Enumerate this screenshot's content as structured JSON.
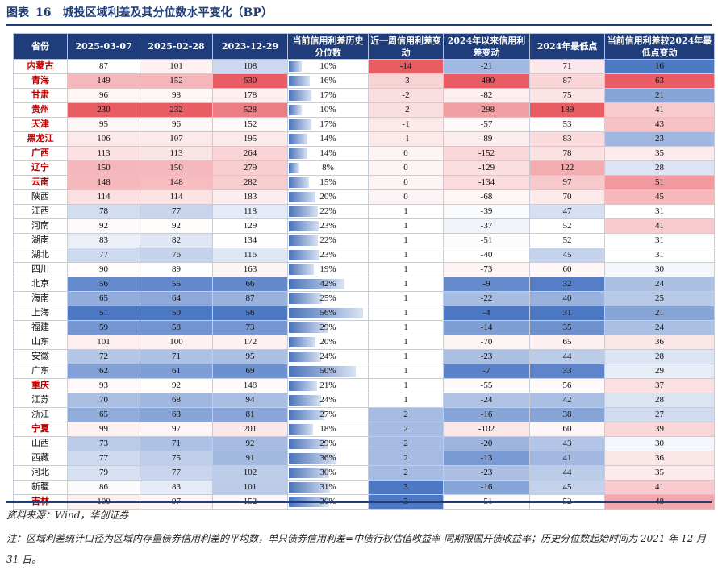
{
  "title": {
    "label": "图表",
    "number": "16",
    "text": "城投区域利差及其分位数水平变化（BP）"
  },
  "columns": [
    "省份",
    "2025-03-07",
    "2025-02-28",
    "2023-12-29",
    "当前信用利差历史分位数",
    "近一周信用利差变动",
    "2024年以来信用利差变动",
    "2024年最低点",
    "当前信用利差较2024年最低点变动"
  ],
  "rows": [
    {
      "p": "内蒙古",
      "red": true,
      "a": "87",
      "b": "101",
      "c": "108",
      "pct": "10%",
      "pv": 10,
      "wk": "-14",
      "ytd": "-21",
      "low": "71",
      "vs": "16"
    },
    {
      "p": "青海",
      "red": true,
      "a": "149",
      "b": "152",
      "c": "630",
      "pct": "16%",
      "pv": 16,
      "wk": "-3",
      "ytd": "-480",
      "low": "87",
      "vs": "63"
    },
    {
      "p": "甘肃",
      "red": true,
      "a": "96",
      "b": "98",
      "c": "178",
      "pct": "17%",
      "pv": 17,
      "wk": "-2",
      "ytd": "-82",
      "low": "75",
      "vs": "21"
    },
    {
      "p": "贵州",
      "red": true,
      "a": "230",
      "b": "232",
      "c": "528",
      "pct": "10%",
      "pv": 10,
      "wk": "-2",
      "ytd": "-298",
      "low": "189",
      "vs": "41"
    },
    {
      "p": "天津",
      "red": true,
      "a": "95",
      "b": "96",
      "c": "152",
      "pct": "17%",
      "pv": 17,
      "wk": "-1",
      "ytd": "-57",
      "low": "53",
      "vs": "43"
    },
    {
      "p": "黑龙江",
      "red": true,
      "a": "106",
      "b": "107",
      "c": "195",
      "pct": "14%",
      "pv": 14,
      "wk": "-1",
      "ytd": "-89",
      "low": "83",
      "vs": "23"
    },
    {
      "p": "广西",
      "red": true,
      "a": "113",
      "b": "113",
      "c": "264",
      "pct": "14%",
      "pv": 14,
      "wk": "0",
      "ytd": "-152",
      "low": "78",
      "vs": "35"
    },
    {
      "p": "辽宁",
      "red": true,
      "a": "150",
      "b": "150",
      "c": "279",
      "pct": "8%",
      "pv": 8,
      "wk": "0",
      "ytd": "-129",
      "low": "122",
      "vs": "28"
    },
    {
      "p": "云南",
      "red": true,
      "a": "148",
      "b": "148",
      "c": "282",
      "pct": "15%",
      "pv": 15,
      "wk": "0",
      "ytd": "-134",
      "low": "97",
      "vs": "51"
    },
    {
      "p": "陕西",
      "red": false,
      "a": "114",
      "b": "114",
      "c": "183",
      "pct": "20%",
      "pv": 20,
      "wk": "0",
      "ytd": "-68",
      "low": "70",
      "vs": "45"
    },
    {
      "p": "江西",
      "red": false,
      "a": "78",
      "b": "77",
      "c": "118",
      "pct": "22%",
      "pv": 22,
      "wk": "1",
      "ytd": "-39",
      "low": "47",
      "vs": "31"
    },
    {
      "p": "河南",
      "red": false,
      "a": "92",
      "b": "92",
      "c": "129",
      "pct": "23%",
      "pv": 23,
      "wk": "1",
      "ytd": "-37",
      "low": "52",
      "vs": "41"
    },
    {
      "p": "湖南",
      "red": false,
      "a": "83",
      "b": "82",
      "c": "134",
      "pct": "22%",
      "pv": 22,
      "wk": "1",
      "ytd": "-51",
      "low": "52",
      "vs": "31"
    },
    {
      "p": "湖北",
      "red": false,
      "a": "77",
      "b": "76",
      "c": "116",
      "pct": "23%",
      "pv": 23,
      "wk": "1",
      "ytd": "-40",
      "low": "45",
      "vs": "31"
    },
    {
      "p": "四川",
      "red": false,
      "a": "90",
      "b": "89",
      "c": "163",
      "pct": "19%",
      "pv": 19,
      "wk": "1",
      "ytd": "-73",
      "low": "60",
      "vs": "30"
    },
    {
      "p": "北京",
      "red": false,
      "a": "56",
      "b": "55",
      "c": "66",
      "pct": "42%",
      "pv": 42,
      "wk": "1",
      "ytd": "-9",
      "low": "32",
      "vs": "24"
    },
    {
      "p": "海南",
      "red": false,
      "a": "65",
      "b": "64",
      "c": "87",
      "pct": "25%",
      "pv": 25,
      "wk": "1",
      "ytd": "-22",
      "low": "40",
      "vs": "25"
    },
    {
      "p": "上海",
      "red": false,
      "a": "51",
      "b": "50",
      "c": "56",
      "pct": "56%",
      "pv": 56,
      "wk": "1",
      "ytd": "-4",
      "low": "31",
      "vs": "21"
    },
    {
      "p": "福建",
      "red": false,
      "a": "59",
      "b": "58",
      "c": "73",
      "pct": "29%",
      "pv": 29,
      "wk": "1",
      "ytd": "-14",
      "low": "35",
      "vs": "24"
    },
    {
      "p": "山东",
      "red": false,
      "a": "101",
      "b": "100",
      "c": "172",
      "pct": "20%",
      "pv": 20,
      "wk": "1",
      "ytd": "-70",
      "low": "65",
      "vs": "36"
    },
    {
      "p": "安徽",
      "red": false,
      "a": "72",
      "b": "71",
      "c": "95",
      "pct": "24%",
      "pv": 24,
      "wk": "1",
      "ytd": "-23",
      "low": "44",
      "vs": "28"
    },
    {
      "p": "广东",
      "red": false,
      "a": "62",
      "b": "61",
      "c": "69",
      "pct": "50%",
      "pv": 50,
      "wk": "1",
      "ytd": "-7",
      "low": "33",
      "vs": "29"
    },
    {
      "p": "重庆",
      "red": true,
      "a": "93",
      "b": "92",
      "c": "148",
      "pct": "21%",
      "pv": 21,
      "wk": "1",
      "ytd": "-55",
      "low": "56",
      "vs": "37"
    },
    {
      "p": "江苏",
      "red": false,
      "a": "70",
      "b": "68",
      "c": "94",
      "pct": "24%",
      "pv": 24,
      "wk": "1",
      "ytd": "-24",
      "low": "42",
      "vs": "28"
    },
    {
      "p": "浙江",
      "red": false,
      "a": "65",
      "b": "63",
      "c": "81",
      "pct": "27%",
      "pv": 27,
      "wk": "2",
      "ytd": "-16",
      "low": "38",
      "vs": "27"
    },
    {
      "p": "宁夏",
      "red": true,
      "a": "99",
      "b": "97",
      "c": "201",
      "pct": "18%",
      "pv": 18,
      "wk": "2",
      "ytd": "-102",
      "low": "60",
      "vs": "39"
    },
    {
      "p": "山西",
      "red": false,
      "a": "73",
      "b": "71",
      "c": "92",
      "pct": "29%",
      "pv": 29,
      "wk": "2",
      "ytd": "-20",
      "low": "43",
      "vs": "30"
    },
    {
      "p": "西藏",
      "red": false,
      "a": "77",
      "b": "75",
      "c": "91",
      "pct": "36%",
      "pv": 36,
      "wk": "2",
      "ytd": "-13",
      "low": "41",
      "vs": "36"
    },
    {
      "p": "河北",
      "red": false,
      "a": "79",
      "b": "77",
      "c": "102",
      "pct": "30%",
      "pv": 30,
      "wk": "2",
      "ytd": "-23",
      "low": "44",
      "vs": "35"
    },
    {
      "p": "新疆",
      "red": false,
      "a": "86",
      "b": "83",
      "c": "101",
      "pct": "31%",
      "pv": 31,
      "wk": "3",
      "ytd": "-16",
      "low": "45",
      "vs": "41"
    },
    {
      "p": "吉林",
      "red": true,
      "a": "100",
      "b": "97",
      "c": "152",
      "pct": "30%",
      "pv": 30,
      "wk": "3",
      "ytd": "-51",
      "low": "52",
      "vs": "48"
    }
  ],
  "source": "资料来源：Wind，华创证券",
  "note": "注：区域利差统计口径为区域内存量债券信用利差的平均数，单只债券信用利差=中债行权估值收益率-同期限国开债收益率；历史分位数起始时间为 2021 年 12 月 31 日。"
}
